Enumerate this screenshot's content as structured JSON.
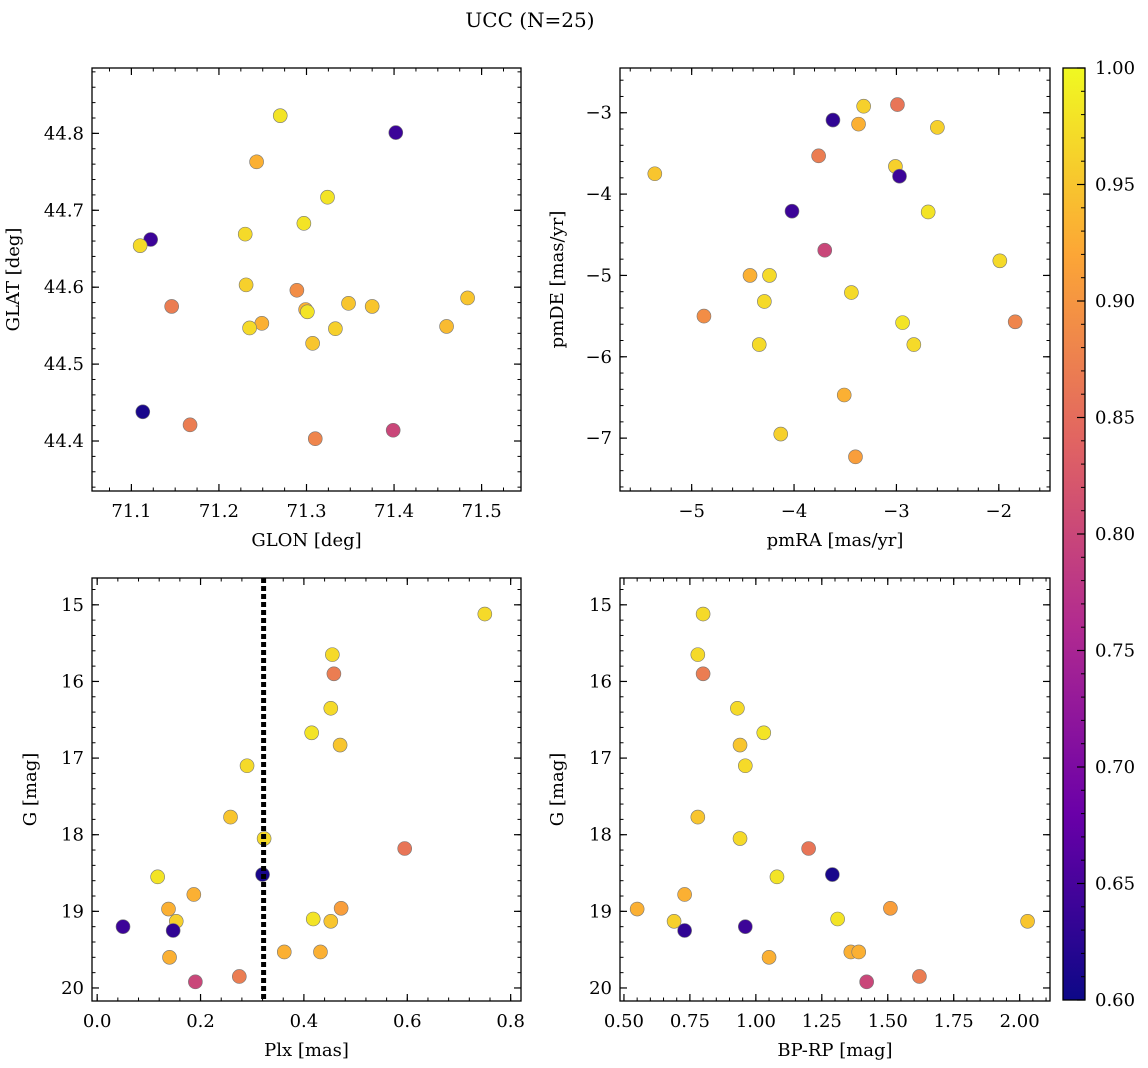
{
  "chart_data": {
    "title": "UCC (N=25)",
    "colorbar": {
      "min": 0.6,
      "max": 1.0,
      "ticks": [
        "0.60",
        "0.65",
        "0.70",
        "0.75",
        "0.80",
        "0.85",
        "0.90",
        "0.95",
        "1.00"
      ],
      "colormap": [
        "#0d0887",
        "#6a00a8",
        "#b12a90",
        "#e16462",
        "#fca636",
        "#f0f921"
      ]
    },
    "panels": [
      {
        "type": "scatter",
        "xlabel": "GLON [deg]",
        "ylabel": "GLAT [deg]",
        "xlim": [
          71.055,
          71.545
        ],
        "ylim": [
          44.335,
          44.885
        ],
        "xticks": [
          "71.1",
          "71.2",
          "71.3",
          "71.4",
          "71.5"
        ],
        "yticks": [
          "44.4",
          "44.5",
          "44.6",
          "44.7",
          "44.8"
        ],
        "invert_y": false,
        "points": [
          {
            "x": 71.27,
            "y": 44.823,
            "c": 0.98
          },
          {
            "x": 71.402,
            "y": 44.801,
            "c": 0.64
          },
          {
            "x": 71.243,
            "y": 44.763,
            "c": 0.93
          },
          {
            "x": 71.324,
            "y": 44.717,
            "c": 0.98
          },
          {
            "x": 71.297,
            "y": 44.683,
            "c": 0.98
          },
          {
            "x": 71.23,
            "y": 44.669,
            "c": 0.97
          },
          {
            "x": 71.122,
            "y": 44.662,
            "c": 0.64
          },
          {
            "x": 71.11,
            "y": 44.654,
            "c": 0.97
          },
          {
            "x": 71.231,
            "y": 44.603,
            "c": 0.96
          },
          {
            "x": 71.289,
            "y": 44.596,
            "c": 0.89
          },
          {
            "x": 71.484,
            "y": 44.586,
            "c": 0.95
          },
          {
            "x": 71.348,
            "y": 44.579,
            "c": 0.95
          },
          {
            "x": 71.375,
            "y": 44.575,
            "c": 0.95
          },
          {
            "x": 71.146,
            "y": 44.575,
            "c": 0.87
          },
          {
            "x": 71.299,
            "y": 44.571,
            "c": 0.93
          },
          {
            "x": 71.301,
            "y": 44.568,
            "c": 0.98
          },
          {
            "x": 71.249,
            "y": 44.553,
            "c": 0.93
          },
          {
            "x": 71.46,
            "y": 44.549,
            "c": 0.94
          },
          {
            "x": 71.235,
            "y": 44.547,
            "c": 0.97
          },
          {
            "x": 71.333,
            "y": 44.546,
            "c": 0.96
          },
          {
            "x": 71.307,
            "y": 44.527,
            "c": 0.95
          },
          {
            "x": 71.113,
            "y": 44.438,
            "c": 0.61
          },
          {
            "x": 71.167,
            "y": 44.421,
            "c": 0.87
          },
          {
            "x": 71.31,
            "y": 44.403,
            "c": 0.88
          },
          {
            "x": 71.399,
            "y": 44.414,
            "c": 0.8
          }
        ]
      },
      {
        "type": "scatter",
        "xlabel": "pmRA [mas/yr]",
        "ylabel": "pmDE [mas/yr]",
        "xlim": [
          -5.7,
          -1.5
        ],
        "ylim": [
          -7.65,
          -2.45
        ],
        "xticks": [
          "−5",
          "−4",
          "−3",
          "−2"
        ],
        "yticks": [
          "−7",
          "−6",
          "−5",
          "−4",
          "−3"
        ],
        "invert_y": false,
        "points": [
          {
            "x": -2.99,
            "y": -2.9,
            "c": 0.86
          },
          {
            "x": -3.32,
            "y": -2.92,
            "c": 0.96
          },
          {
            "x": -3.62,
            "y": -3.09,
            "c": 0.63
          },
          {
            "x": -3.37,
            "y": -3.14,
            "c": 0.93
          },
          {
            "x": -2.6,
            "y": -3.18,
            "c": 0.96
          },
          {
            "x": -3.76,
            "y": -3.53,
            "c": 0.87
          },
          {
            "x": -3.01,
            "y": -3.66,
            "c": 0.96
          },
          {
            "x": -5.36,
            "y": -3.75,
            "c": 0.95
          },
          {
            "x": -2.97,
            "y": -3.78,
            "c": 0.64
          },
          {
            "x": -4.02,
            "y": -4.21,
            "c": 0.64
          },
          {
            "x": -2.69,
            "y": -4.22,
            "c": 0.98
          },
          {
            "x": -3.7,
            "y": -4.69,
            "c": 0.8
          },
          {
            "x": -1.99,
            "y": -4.82,
            "c": 0.97
          },
          {
            "x": -4.43,
            "y": -5.0,
            "c": 0.93
          },
          {
            "x": -4.24,
            "y": -5.0,
            "c": 0.97
          },
          {
            "x": -3.44,
            "y": -5.21,
            "c": 0.97
          },
          {
            "x": -4.29,
            "y": -5.32,
            "c": 0.97
          },
          {
            "x": -4.88,
            "y": -5.5,
            "c": 0.89
          },
          {
            "x": -1.84,
            "y": -5.57,
            "c": 0.88
          },
          {
            "x": -2.94,
            "y": -5.58,
            "c": 0.98
          },
          {
            "x": -4.34,
            "y": -5.85,
            "c": 0.97
          },
          {
            "x": -2.83,
            "y": -5.85,
            "c": 0.97
          },
          {
            "x": -3.51,
            "y": -6.47,
            "c": 0.93
          },
          {
            "x": -4.13,
            "y": -6.95,
            "c": 0.96
          },
          {
            "x": -3.4,
            "y": -7.23,
            "c": 0.91
          }
        ]
      },
      {
        "type": "scatter",
        "xlabel": "Plx [mas]",
        "ylabel": "G [mag]",
        "xlim": [
          -0.01,
          0.82
        ],
        "ylim": [
          14.65,
          20.17
        ],
        "xticks": [
          "0.0",
          "0.2",
          "0.4",
          "0.6",
          "0.8"
        ],
        "yticks": [
          "15",
          "16",
          "17",
          "18",
          "19",
          "20"
        ],
        "invert_y": true,
        "vline": 0.322,
        "points": [
          {
            "x": 0.75,
            "y": 15.12,
            "c": 0.97
          },
          {
            "x": 0.455,
            "y": 15.65,
            "c": 0.97
          },
          {
            "x": 0.458,
            "y": 15.9,
            "c": 0.87
          },
          {
            "x": 0.452,
            "y": 16.35,
            "c": 0.97
          },
          {
            "x": 0.415,
            "y": 16.67,
            "c": 0.98
          },
          {
            "x": 0.47,
            "y": 16.83,
            "c": 0.95
          },
          {
            "x": 0.29,
            "y": 17.1,
            "c": 0.97
          },
          {
            "x": 0.258,
            "y": 17.77,
            "c": 0.95
          },
          {
            "x": 0.323,
            "y": 18.05,
            "c": 0.97
          },
          {
            "x": 0.595,
            "y": 18.18,
            "c": 0.86
          },
          {
            "x": 0.32,
            "y": 18.52,
            "c": 0.61
          },
          {
            "x": 0.117,
            "y": 18.55,
            "c": 0.98
          },
          {
            "x": 0.187,
            "y": 18.78,
            "c": 0.93
          },
          {
            "x": 0.138,
            "y": 18.97,
            "c": 0.93
          },
          {
            "x": 0.472,
            "y": 18.96,
            "c": 0.91
          },
          {
            "x": 0.418,
            "y": 19.1,
            "c": 0.98
          },
          {
            "x": 0.153,
            "y": 19.13,
            "c": 0.96
          },
          {
            "x": 0.452,
            "y": 19.13,
            "c": 0.95
          },
          {
            "x": 0.05,
            "y": 19.2,
            "c": 0.64
          },
          {
            "x": 0.147,
            "y": 19.25,
            "c": 0.63
          },
          {
            "x": 0.362,
            "y": 19.53,
            "c": 0.93
          },
          {
            "x": 0.432,
            "y": 19.53,
            "c": 0.93
          },
          {
            "x": 0.14,
            "y": 19.6,
            "c": 0.93
          },
          {
            "x": 0.275,
            "y": 19.85,
            "c": 0.87
          },
          {
            "x": 0.19,
            "y": 19.92,
            "c": 0.8
          }
        ]
      },
      {
        "type": "scatter",
        "xlabel": "BP-RP [mag]",
        "ylabel": "G [mag]",
        "xlim": [
          0.485,
          2.115
        ],
        "ylim": [
          14.65,
          20.17
        ],
        "xticks": [
          "0.50",
          "0.75",
          "1.00",
          "1.25",
          "1.50",
          "1.75",
          "2.00"
        ],
        "yticks": [
          "15",
          "16",
          "17",
          "18",
          "19",
          "20"
        ],
        "invert_y": true,
        "points": [
          {
            "x": 0.8,
            "y": 15.12,
            "c": 0.97
          },
          {
            "x": 0.78,
            "y": 15.65,
            "c": 0.97
          },
          {
            "x": 0.8,
            "y": 15.9,
            "c": 0.87
          },
          {
            "x": 0.93,
            "y": 16.35,
            "c": 0.97
          },
          {
            "x": 1.03,
            "y": 16.67,
            "c": 0.98
          },
          {
            "x": 0.94,
            "y": 16.83,
            "c": 0.95
          },
          {
            "x": 0.96,
            "y": 17.1,
            "c": 0.97
          },
          {
            "x": 0.78,
            "y": 17.77,
            "c": 0.95
          },
          {
            "x": 0.94,
            "y": 18.05,
            "c": 0.97
          },
          {
            "x": 1.2,
            "y": 18.18,
            "c": 0.86
          },
          {
            "x": 1.29,
            "y": 18.52,
            "c": 0.61
          },
          {
            "x": 1.08,
            "y": 18.55,
            "c": 0.98
          },
          {
            "x": 0.73,
            "y": 18.78,
            "c": 0.93
          },
          {
            "x": 0.55,
            "y": 18.97,
            "c": 0.93
          },
          {
            "x": 1.51,
            "y": 18.96,
            "c": 0.91
          },
          {
            "x": 1.31,
            "y": 19.1,
            "c": 0.98
          },
          {
            "x": 0.69,
            "y": 19.13,
            "c": 0.96
          },
          {
            "x": 2.03,
            "y": 19.13,
            "c": 0.95
          },
          {
            "x": 0.96,
            "y": 19.2,
            "c": 0.64
          },
          {
            "x": 0.73,
            "y": 19.25,
            "c": 0.63
          },
          {
            "x": 1.36,
            "y": 19.53,
            "c": 0.93
          },
          {
            "x": 1.39,
            "y": 19.53,
            "c": 0.93
          },
          {
            "x": 1.05,
            "y": 19.6,
            "c": 0.93
          },
          {
            "x": 1.62,
            "y": 19.85,
            "c": 0.87
          },
          {
            "x": 1.42,
            "y": 19.92,
            "c": 0.8
          }
        ]
      }
    ]
  }
}
